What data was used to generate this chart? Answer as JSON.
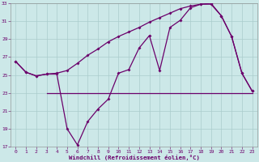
{
  "background_color": "#cce8e8",
  "line_color": "#6b006b",
  "xlabel": "Windchill (Refroidissement éolien,°C)",
  "ylim": [
    17,
    33
  ],
  "xlim": [
    -0.5,
    23.5
  ],
  "yticks": [
    17,
    19,
    21,
    23,
    25,
    27,
    29,
    31,
    33
  ],
  "xticks": [
    0,
    1,
    2,
    3,
    4,
    5,
    6,
    7,
    8,
    9,
    10,
    11,
    12,
    13,
    14,
    15,
    16,
    17,
    18,
    19,
    20,
    21,
    22,
    23
  ],
  "x": [
    0,
    1,
    2,
    3,
    4,
    5,
    6,
    7,
    8,
    9,
    10,
    11,
    12,
    13,
    14,
    15,
    16,
    17,
    18,
    19,
    20,
    21,
    22,
    23
  ],
  "y_windchill": [
    26.5,
    25.3,
    24.9,
    25.1,
    25.1,
    19.0,
    17.2,
    19.8,
    21.2,
    22.3,
    25.2,
    25.6,
    28.0,
    29.4,
    25.5,
    30.3,
    31.1,
    32.5,
    32.9,
    32.9,
    31.6,
    29.3,
    25.2,
    23.2
  ],
  "y_temp": [
    26.5,
    25.3,
    24.9,
    25.1,
    25.2,
    25.5,
    26.3,
    27.2,
    27.9,
    28.7,
    29.3,
    29.8,
    30.3,
    30.9,
    31.4,
    31.9,
    32.4,
    32.7,
    32.9,
    33.0,
    31.6,
    29.3,
    25.2,
    23.2
  ],
  "y_flat_x": [
    3,
    4,
    5,
    6,
    7,
    8,
    9,
    10,
    11,
    12,
    13,
    14,
    15,
    16,
    17,
    18,
    19,
    20,
    21,
    22,
    23
  ],
  "y_flat_y": [
    23.0,
    23.0,
    23.0,
    23.0,
    23.0,
    23.0,
    23.0,
    23.0,
    23.0,
    23.0,
    23.0,
    23.0,
    23.0,
    23.0,
    23.0,
    23.0,
    23.0,
    23.0,
    23.0,
    23.0,
    23.0
  ],
  "grid_color": "#aacccc",
  "marker": "D",
  "markersize": 2.0,
  "linewidth": 0.9,
  "tick_fontsize": 4.5,
  "xlabel_fontsize": 5.2
}
